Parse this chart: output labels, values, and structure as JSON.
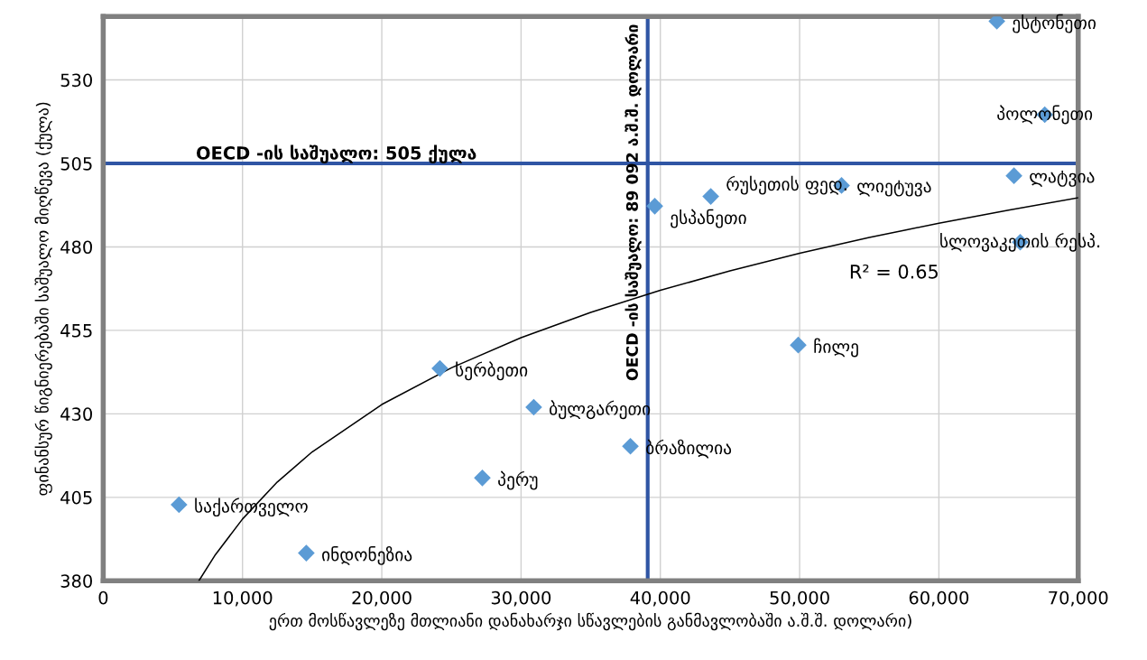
{
  "chart_data": {
    "type": "scatter",
    "xlabel": "ერთ მოსწავლეზე მთლიანი დანახარჯი სწავლების განმავლობაში ა.შ.შ. დოლარი)",
    "ylabel": "ფინანსურ წიგნიერებაში საშუალო მიღწევა (ქულა)",
    "series": [
      {
        "color": "#5b9bd5",
        "marker": "diamond",
        "x": [
          64160,
          67600,
          65390,
          43620,
          53010,
          39600,
          65840,
          49900,
          24170,
          30910,
          37850,
          27220,
          5440,
          14580
        ],
        "values": [
          547.6,
          519.6,
          501.3,
          495.1,
          498.4,
          492.2,
          481.4,
          450.6,
          443.6,
          432.0,
          420.3,
          410.8,
          402.8,
          388.3
        ]
      },
      {
        "type": "line",
        "color": "#000000",
        "marker": "none",
        "x": [
          6870,
          8000,
          10000,
          12500,
          15000,
          20000,
          25000,
          30000,
          35000,
          40000,
          45000,
          50000,
          55000,
          60000,
          65000,
          70000
        ],
        "values": [
          380.0,
          387.5,
          398.5,
          409.6,
          418.6,
          432.8,
          443.8,
          452.8,
          460.4,
          467.0,
          472.8,
          478.1,
          482.8,
          487.1,
          491.0,
          494.7
        ]
      }
    ],
    "annotations": [
      {
        "text": "ესტონეთი",
        "x": 64160,
        "y": 547.6
      },
      {
        "text": "პოლონეთი",
        "x": 67600,
        "y": 519.6
      },
      {
        "text": "ლატვია",
        "x": 65390,
        "y": 501.3
      },
      {
        "text": "რუსეთის ფედ.",
        "x": 43620,
        "y": 495.1
      },
      {
        "text": "ლიეტუვა",
        "x": 53010,
        "y": 498.4
      },
      {
        "text": "ესპანეთი",
        "x": 39600,
        "y": 492.2
      },
      {
        "text": "სლოვაკეთის რესპ.",
        "x": 65840,
        "y": 481.4
      },
      {
        "text": "ჩილე",
        "x": 49900,
        "y": 450.6
      },
      {
        "text": "სერბეთი",
        "x": 24170,
        "y": 443.6
      },
      {
        "text": "ბულგარეთი",
        "x": 30910,
        "y": 432.0
      },
      {
        "text": "ბრაზილია",
        "x": 37850,
        "y": 420.3
      },
      {
        "text": "პერუ",
        "x": 27220,
        "y": 410.8
      },
      {
        "text": "საქართველო",
        "x": 5440,
        "y": 402.8
      },
      {
        "text": "ინდონეზია",
        "x": 14580,
        "y": 388.3
      },
      "R² = 0.65",
      "OECD -ის საშუალო: 89 092 ა.შ.შ. დოლარი"
    ],
    "ref_lines": [
      {
        "axis": "y",
        "value": 505,
        "label": "OECD -ის საშუალო: 505 ქულა",
        "color": "#2f55a4"
      },
      {
        "axis": "x",
        "value": 39092,
        "color": "#2f55a4"
      }
    ],
    "xlim": [
      0,
      70000
    ],
    "xticks": [
      0,
      {
        "value": 10000,
        "label": "10,000"
      },
      {
        "value": 20000,
        "label": "20,000"
      },
      {
        "value": 30000,
        "label": "30,000"
      },
      {
        "value": 40000,
        "label": "40,000"
      },
      {
        "value": 50000,
        "label": "50,000"
      },
      {
        "value": 60000,
        "label": "60,000"
      },
      {
        "value": 70000,
        "label": "70,000"
      }
    ],
    "ylim": [
      380,
      549
    ],
    "yticks": [
      380,
      405,
      430,
      455,
      480,
      505,
      530
    ],
    "grid": true,
    "legend": false
  }
}
